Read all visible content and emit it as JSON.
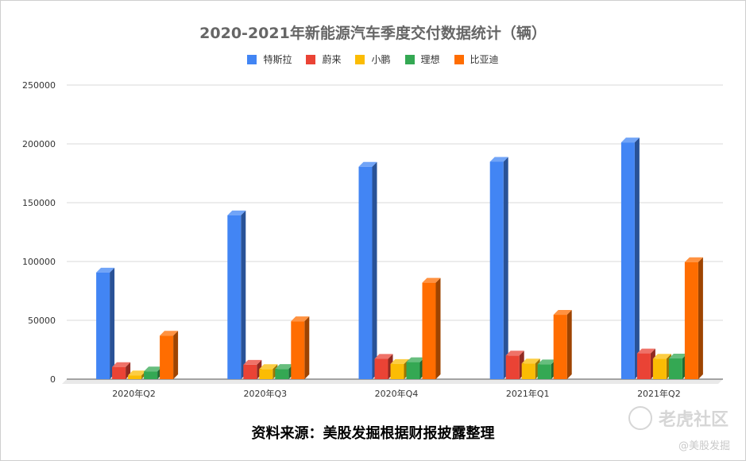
{
  "chart_data": {
    "type": "bar",
    "title": "2020-2021年新能源汽车季度交付数据统计（辆）",
    "categories": [
      "2020年Q2",
      "2020年Q3",
      "2020年Q4",
      "2021年Q1",
      "2021年Q2"
    ],
    "series": [
      {
        "name": "特斯拉",
        "color": "#4285F4",
        "values": [
          90650,
          139300,
          180570,
          184800,
          201250
        ]
      },
      {
        "name": "蔚来",
        "color": "#EA4335",
        "values": [
          10330,
          12206,
          17353,
          20060,
          21896
        ]
      },
      {
        "name": "小鹏",
        "color": "#FBBC04",
        "values": [
          3228,
          8578,
          12964,
          13340,
          17398
        ]
      },
      {
        "name": "理想",
        "color": "#34A853",
        "values": [
          6604,
          8660,
          14464,
          12579,
          17575
        ]
      },
      {
        "name": "比亚迪",
        "color": "#FF6D01",
        "values": [
          37000,
          49200,
          82000,
          54700,
          99500
        ]
      }
    ],
    "ylim": [
      0,
      250000
    ],
    "yticks": [
      0,
      50000,
      100000,
      150000,
      200000,
      250000
    ],
    "ylabel": "",
    "xlabel": "",
    "grid": true,
    "legend": "top-center",
    "style": "3d-bars"
  },
  "source_text": "资料来源：美股发掘根据财报披露整理",
  "watermark": {
    "brand": "老虎社区",
    "handle": "@美股发掘"
  }
}
